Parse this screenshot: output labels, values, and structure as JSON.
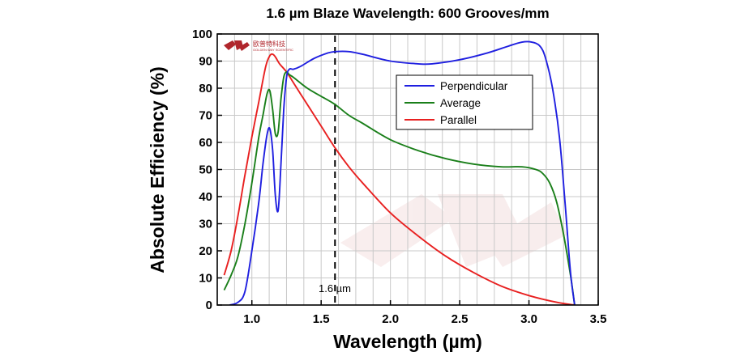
{
  "chart_data": {
    "type": "line",
    "title": "1.6 µm Blaze Wavelength: 600 Grooves/mm",
    "xlabel": "Wavelength (µm)",
    "ylabel": "Absolute Efficiency (%)",
    "xlim": [
      0.75,
      3.5
    ],
    "ylim": [
      0,
      100
    ],
    "xticks": [
      "1.0",
      "1.5",
      "2.0",
      "2.5",
      "3.0",
      "3.5"
    ],
    "xtick_values": [
      1.0,
      1.5,
      2.0,
      2.5,
      3.0,
      3.5
    ],
    "yticks": [
      "0",
      "10",
      "20",
      "30",
      "40",
      "50",
      "60",
      "70",
      "80",
      "90",
      "100"
    ],
    "ytick_values": [
      0,
      10,
      20,
      30,
      40,
      50,
      60,
      70,
      80,
      90,
      100
    ],
    "grid": true,
    "legend_position": "top-right",
    "series": [
      {
        "name": "Perpendicular",
        "color": "#1f1fe0",
        "x": [
          0.84,
          0.9,
          0.95,
          1.0,
          1.05,
          1.08,
          1.11,
          1.13,
          1.15,
          1.17,
          1.19,
          1.21,
          1.23,
          1.25,
          1.27,
          1.3,
          1.35,
          1.45,
          1.55,
          1.6,
          1.7,
          1.8,
          2.0,
          2.2,
          2.3,
          2.5,
          2.7,
          2.85,
          2.95,
          3.02,
          3.08,
          3.12,
          3.17,
          3.22,
          3.26,
          3.3,
          3.33
        ],
        "y": [
          0,
          1,
          5,
          20,
          38,
          52,
          63,
          65,
          57,
          40,
          35,
          52,
          72,
          84,
          87,
          87,
          88,
          91,
          93,
          93.5,
          93.5,
          92.5,
          90,
          89,
          89,
          90.5,
          93,
          95.5,
          97,
          97,
          95.5,
          91,
          80,
          62,
          38,
          12,
          0
        ]
      },
      {
        "name": "Average",
        "color": "#1a7f1a",
        "x": [
          0.8,
          0.85,
          0.9,
          0.95,
          1.0,
          1.05,
          1.08,
          1.11,
          1.13,
          1.15,
          1.17,
          1.19,
          1.21,
          1.23,
          1.25,
          1.27,
          1.3,
          1.4,
          1.5,
          1.6,
          1.7,
          1.8,
          2.0,
          2.2,
          2.4,
          2.6,
          2.8,
          2.95,
          3.05,
          3.1,
          3.15,
          3.2,
          3.25,
          3.3,
          3.33
        ],
        "y": [
          5.5,
          11,
          18,
          30,
          45,
          62,
          70,
          78,
          79,
          72,
          63,
          64,
          76,
          84,
          86,
          85,
          84,
          80,
          77,
          74,
          70,
          67,
          61,
          57,
          54,
          52,
          51,
          51,
          50,
          48.5,
          45,
          38,
          26,
          11,
          0
        ]
      },
      {
        "name": "Parallel",
        "color": "#e82020",
        "x": [
          0.8,
          0.85,
          0.9,
          0.95,
          1.0,
          1.05,
          1.1,
          1.13,
          1.15,
          1.17,
          1.2,
          1.25,
          1.3,
          1.35,
          1.4,
          1.5,
          1.6,
          1.7,
          1.8,
          2.0,
          2.2,
          2.4,
          2.6,
          2.8,
          3.0,
          3.2,
          3.33
        ],
        "y": [
          11,
          20,
          33,
          48,
          62,
          75,
          88,
          92,
          92.5,
          91.5,
          89,
          86,
          82,
          78,
          74,
          66,
          58,
          51,
          45,
          34,
          25.5,
          18,
          12,
          7,
          3.5,
          1,
          0
        ]
      }
    ],
    "annotations": [
      {
        "text": "1.6 µm",
        "x": 1.6,
        "style": "dashed-vertical-line"
      }
    ],
    "logo": {
      "text": "欧普特科技",
      "subtext": "GOLDEN WAY SCIENTIFIC",
      "color": "#b0262c"
    }
  }
}
